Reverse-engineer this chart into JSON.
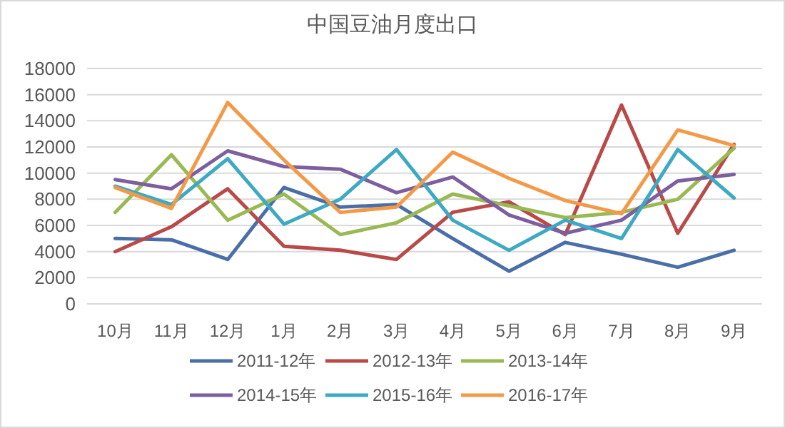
{
  "chart_data": {
    "type": "line",
    "title": "中国豆油月度出口",
    "categories": [
      "10月",
      "11月",
      "12月",
      "1月",
      "2月",
      "3月",
      "4月",
      "5月",
      "6月",
      "7月",
      "8月",
      "9月"
    ],
    "ylim": [
      0,
      18000
    ],
    "yticks": [
      0,
      2000,
      4000,
      6000,
      8000,
      10000,
      12000,
      14000,
      16000,
      18000
    ],
    "grid": "y",
    "legend": "bottom",
    "marker": "none",
    "line_style": "solid",
    "series": [
      {
        "name": "2011-12年",
        "color": "#4a6fa8",
        "values": [
          5000,
          4900,
          3400,
          8900,
          7400,
          7600,
          5000,
          2500,
          4700,
          3800,
          2800,
          4100
        ]
      },
      {
        "name": "2012-13年",
        "color": "#b84a48",
        "values": [
          4000,
          5900,
          8800,
          4400,
          4100,
          3400,
          7000,
          7800,
          5300,
          15200,
          5400,
          12200
        ]
      },
      {
        "name": "2013-14年",
        "color": "#98b954",
        "values": [
          7000,
          11400,
          6400,
          8400,
          5300,
          6200,
          8400,
          7500,
          6600,
          7000,
          8000,
          11900
        ]
      },
      {
        "name": "2014-15年",
        "color": "#7d5fa0",
        "values": [
          9500,
          8800,
          11700,
          10500,
          10300,
          8500,
          9700,
          6800,
          5400,
          6400,
          9400,
          9900
        ]
      },
      {
        "name": "2015-16年",
        "color": "#3ea9c2",
        "values": [
          9000,
          7600,
          11100,
          6100,
          8000,
          11800,
          6400,
          4100,
          6400,
          5000,
          11800,
          8100
        ]
      },
      {
        "name": "2016-17年",
        "color": "#f39a48",
        "values": [
          8900,
          7300,
          15400,
          11000,
          7000,
          7400,
          11600,
          9600,
          7900,
          6900,
          13300,
          12100
        ]
      }
    ]
  }
}
